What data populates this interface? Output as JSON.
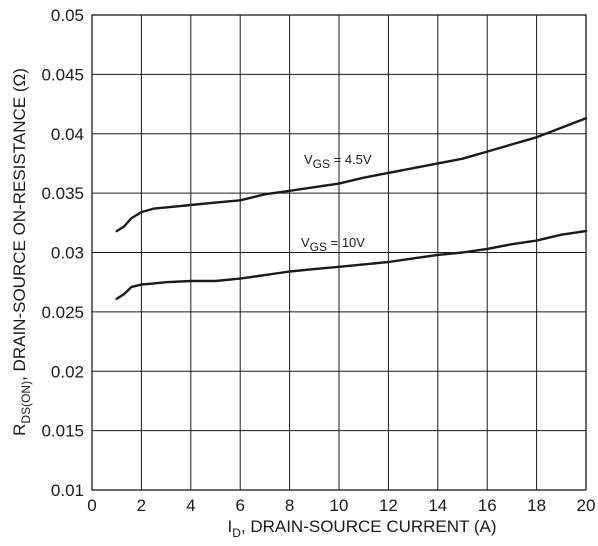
{
  "chart_data": {
    "type": "line",
    "xlabel": {
      "main": "I",
      "sub": "D",
      "rest": ", DRAIN-SOURCE CURRENT (A)"
    },
    "ylabel": {
      "main": "R",
      "sub": "DS(ON)",
      "rest": ", DRAIN-SOURCE ON-RESISTANCE (Ω)"
    },
    "xlim": [
      0,
      20
    ],
    "ylim": [
      0.01,
      0.05
    ],
    "x_ticks": [
      0,
      2,
      4,
      6,
      8,
      10,
      12,
      14,
      16,
      18,
      20
    ],
    "x_tick_labels": [
      "0",
      "2",
      "4",
      "6",
      "8",
      "10",
      "12",
      "14",
      "16",
      "18",
      "20"
    ],
    "y_ticks": [
      0.01,
      0.015,
      0.02,
      0.025,
      0.03,
      0.035,
      0.04,
      0.045,
      0.05
    ],
    "y_tick_labels": [
      "0.01",
      "0.015",
      "0.02",
      "0.025",
      "0.03",
      "0.035",
      "0.04",
      "0.045",
      "0.05"
    ],
    "grid": true,
    "series": [
      {
        "name": "VGS = 4.5V",
        "label": {
          "main": "V",
          "sub": "GS",
          "rest": " = 4.5V"
        },
        "x": [
          1,
          1.3,
          1.6,
          2,
          2.5,
          3,
          4,
          5,
          6,
          7,
          8,
          9,
          10,
          11,
          12,
          13,
          14,
          15,
          16,
          17,
          18,
          19,
          20
        ],
        "y": [
          0.0318,
          0.0322,
          0.0329,
          0.0334,
          0.0337,
          0.0338,
          0.034,
          0.0342,
          0.0344,
          0.0349,
          0.0352,
          0.0355,
          0.0358,
          0.0363,
          0.0367,
          0.0371,
          0.0375,
          0.0379,
          0.0385,
          0.0391,
          0.0397,
          0.0405,
          0.0413
        ]
      },
      {
        "name": "VGS = 10V",
        "label": {
          "main": "V",
          "sub": "GS",
          "rest": " = 10V"
        },
        "x": [
          1,
          1.3,
          1.6,
          2,
          2.5,
          3,
          4,
          5,
          6,
          7,
          8,
          9,
          10,
          11,
          12,
          13,
          14,
          15,
          16,
          17,
          18,
          19,
          20
        ],
        "y": [
          0.0261,
          0.0265,
          0.0271,
          0.0273,
          0.0274,
          0.0275,
          0.0276,
          0.0276,
          0.0278,
          0.0281,
          0.0284,
          0.0286,
          0.0288,
          0.029,
          0.0292,
          0.0295,
          0.0298,
          0.03,
          0.0303,
          0.0307,
          0.031,
          0.0315,
          0.0318
        ]
      }
    ]
  }
}
